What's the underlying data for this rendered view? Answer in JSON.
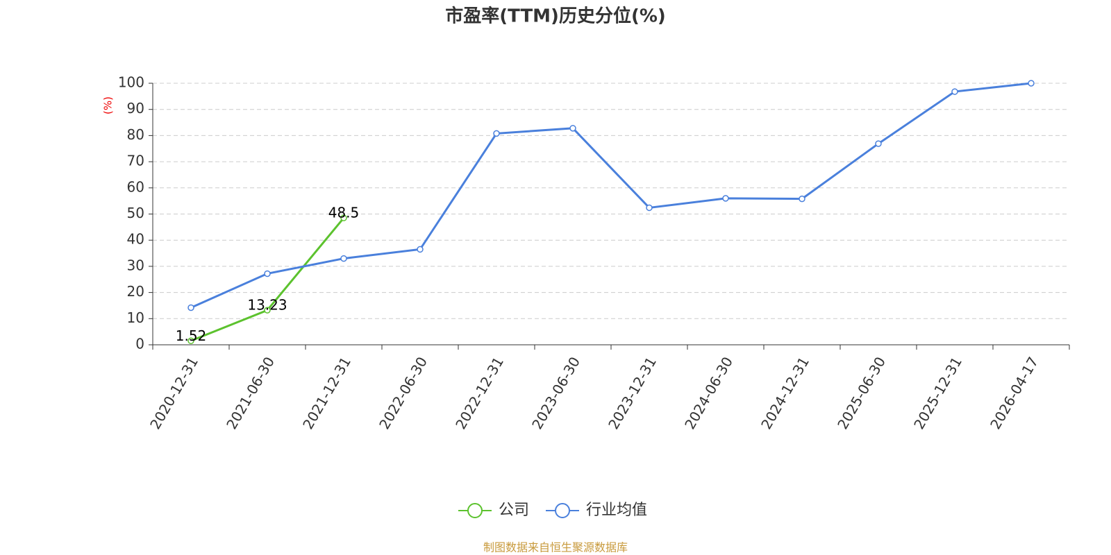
{
  "chart_data": {
    "type": "line",
    "title": "市盈率(TTM)历史分位(%)",
    "y_label": "(%)",
    "categories": [
      "2020-12-31",
      "2021-06-30",
      "2021-12-31",
      "2022-06-30",
      "2022-12-31",
      "2023-06-30",
      "2023-12-31",
      "2024-06-30",
      "2024-12-31",
      "2025-06-30",
      "2025-12-31",
      "2026-04-17"
    ],
    "series": [
      {
        "name": "公司",
        "color": "#5cc22e",
        "show_labels": true,
        "values": [
          1.52,
          13.23,
          48.5,
          null,
          null,
          null,
          null,
          null,
          null,
          null,
          null,
          null
        ]
      },
      {
        "name": "行业均值",
        "color": "#4a80dc",
        "show_labels": false,
        "values": [
          14.2,
          27.2,
          33,
          36.5,
          80.8,
          82.8,
          52.4,
          56,
          55.8,
          76.9,
          96.8,
          100
        ]
      }
    ],
    "ylim": [
      0,
      100
    ],
    "yticks": [
      0,
      10,
      20,
      30,
      40,
      50,
      60,
      70,
      80,
      90,
      100
    ],
    "grid": true,
    "footer": "制图数据来自恒生聚源数据库"
  }
}
